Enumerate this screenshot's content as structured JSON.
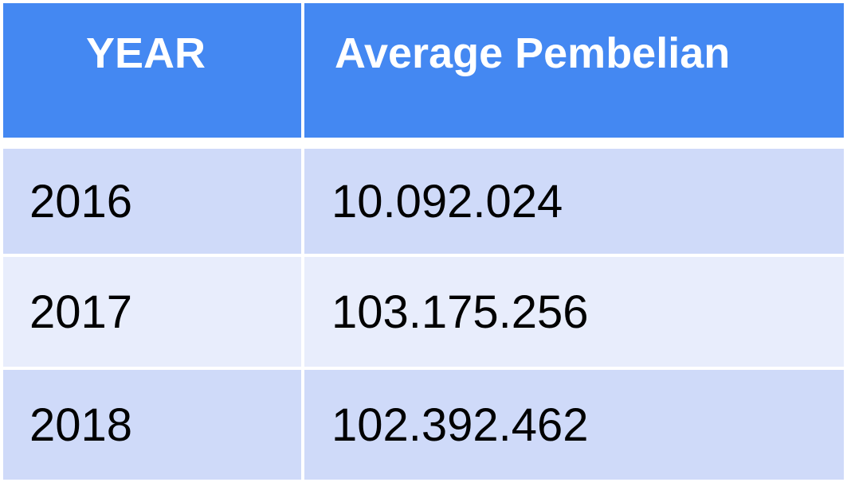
{
  "table": {
    "headers": [
      "YEAR",
      "Average Pembelian"
    ],
    "rows": [
      [
        "2016",
        "10.092.024"
      ],
      [
        "2017",
        "103.175.256"
      ],
      [
        "2018",
        "102.392.462"
      ]
    ]
  },
  "colors": {
    "header_bg": "#4488f2",
    "header_text": "#ffffff",
    "row_odd_bg": "#cfdaf9",
    "row_even_bg": "#e8edfc"
  }
}
